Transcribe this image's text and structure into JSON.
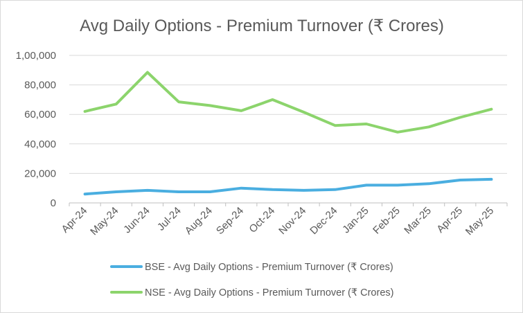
{
  "chart_data": {
    "type": "line",
    "title": "Avg Daily Options - Premium Turnover (₹ Crores)",
    "xlabel": "",
    "ylabel": "",
    "ylim": [
      0,
      100000
    ],
    "yticks": [
      "0",
      "20,000",
      "40,000",
      "60,000",
      "80,000",
      "1,00,000"
    ],
    "categories": [
      "Apr-24",
      "May-24",
      "Jun-24",
      "Jul-24",
      "Aug-24",
      "Sep-24",
      "Oct-24",
      "Nov-24",
      "Dec-24",
      "Jan-25",
      "Feb-25",
      "Mar-25",
      "Apr-25",
      "May-25"
    ],
    "grid": true,
    "legend_position": "bottom",
    "series": [
      {
        "name": "BSE - Avg Daily Options - Premium Turnover (₹ Crores)",
        "color": "#4aaee0",
        "values": [
          6000,
          7500,
          8500,
          7500,
          7500,
          10000,
          9000,
          8500,
          9000,
          12000,
          12000,
          13000,
          15500,
          16000
        ]
      },
      {
        "name": "NSE - Avg Daily Options - Premium Turnover (₹ Crores)",
        "color": "#8cd46c",
        "values": [
          62000,
          67000,
          88500,
          68500,
          66000,
          62500,
          70000,
          61500,
          52500,
          53500,
          48000,
          51500,
          58000,
          63500
        ]
      }
    ]
  }
}
